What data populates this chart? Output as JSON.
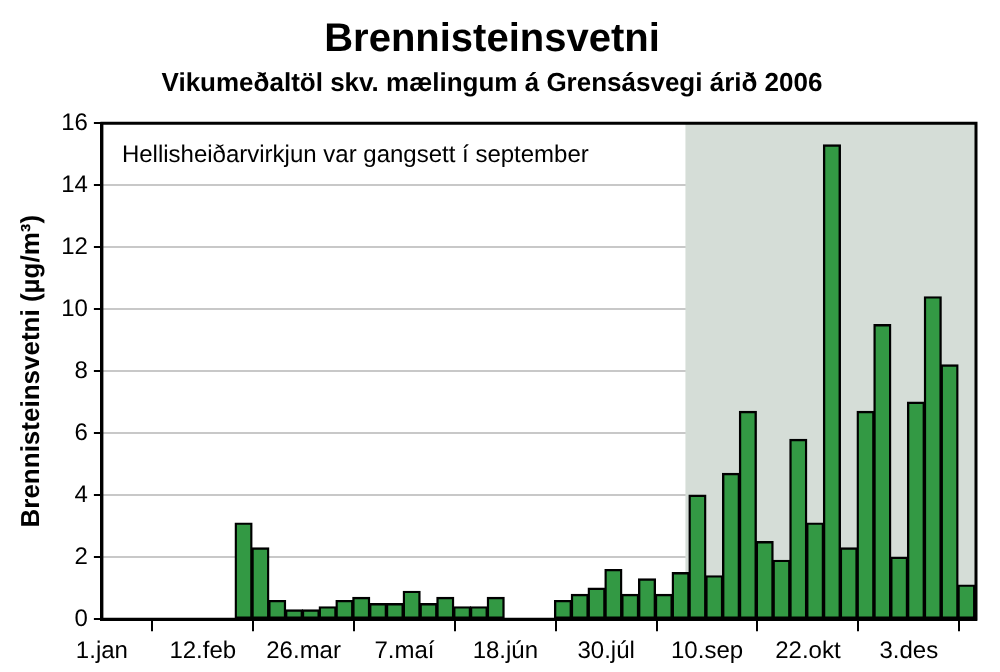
{
  "chart_data": {
    "type": "bar",
    "title": "Brennisteinsvetni",
    "subtitle": "Vikumeðaltöl skv. mælingum á Grensásvegi árið 2006",
    "ylabel": "Brennisteinsvetni (µg/m³)",
    "x": [
      "2006-03-01",
      "2006-03-08",
      "2006-03-15",
      "2006-03-22",
      "2006-03-29",
      "2006-04-05",
      "2006-04-12",
      "2006-04-19",
      "2006-04-26",
      "2006-05-03",
      "2006-05-10",
      "2006-05-17",
      "2006-05-24",
      "2006-05-31",
      "2006-06-07",
      "2006-06-14",
      "2006-07-12",
      "2006-07-19",
      "2006-07-26",
      "2006-08-02",
      "2006-08-09",
      "2006-08-16",
      "2006-08-23",
      "2006-08-30",
      "2006-09-06",
      "2006-09-13",
      "2006-09-20",
      "2006-09-27",
      "2006-10-04",
      "2006-10-11",
      "2006-10-18",
      "2006-10-25",
      "2006-11-01",
      "2006-11-08",
      "2006-11-15",
      "2006-11-22",
      "2006-11-29",
      "2006-12-06",
      "2006-12-13",
      "2006-12-20",
      "2006-12-27"
    ],
    "values": [
      3.1,
      2.3,
      0.6,
      0.3,
      0.3,
      0.4,
      0.6,
      0.7,
      0.5,
      0.5,
      0.9,
      0.5,
      0.7,
      0.4,
      0.4,
      0.7,
      0.6,
      0.8,
      1.0,
      1.6,
      0.8,
      1.3,
      0.8,
      1.5,
      4.0,
      1.4,
      4.7,
      6.7,
      2.5,
      1.9,
      5.8,
      3.1,
      15.3,
      2.3,
      6.7,
      9.5,
      2.0,
      7.0,
      10.4,
      8.2,
      1.1
    ],
    "color": "#339944",
    "xlim": [
      "2006-01-01",
      "2006-12-31"
    ],
    "xticks": [
      {
        "value": "2006-01-01",
        "label": "1.jan"
      },
      {
        "value": "2006-02-12",
        "label": "12.feb"
      },
      {
        "value": "2006-03-26",
        "label": "26.mar"
      },
      {
        "value": "2006-05-07",
        "label": "7.maí"
      },
      {
        "value": "2006-06-18",
        "label": "18.jún"
      },
      {
        "value": "2006-07-30",
        "label": "30.júl"
      },
      {
        "value": "2006-09-10",
        "label": "10.sep"
      },
      {
        "value": "2006-10-22",
        "label": "22.okt"
      },
      {
        "value": "2006-12-03",
        "label": "3.des"
      }
    ],
    "ylim": [
      0,
      16
    ],
    "yticks": [
      0,
      2,
      4,
      6,
      8,
      10,
      12,
      14,
      16
    ],
    "grid": "y",
    "legend": false,
    "bands": [
      {
        "axis": "x",
        "from": "2006-09-01",
        "to": "2006-12-31",
        "color": "#d5ddd7"
      }
    ],
    "annotations": [
      "Hellisheiðarvirkjun var gangsett í september"
    ]
  }
}
